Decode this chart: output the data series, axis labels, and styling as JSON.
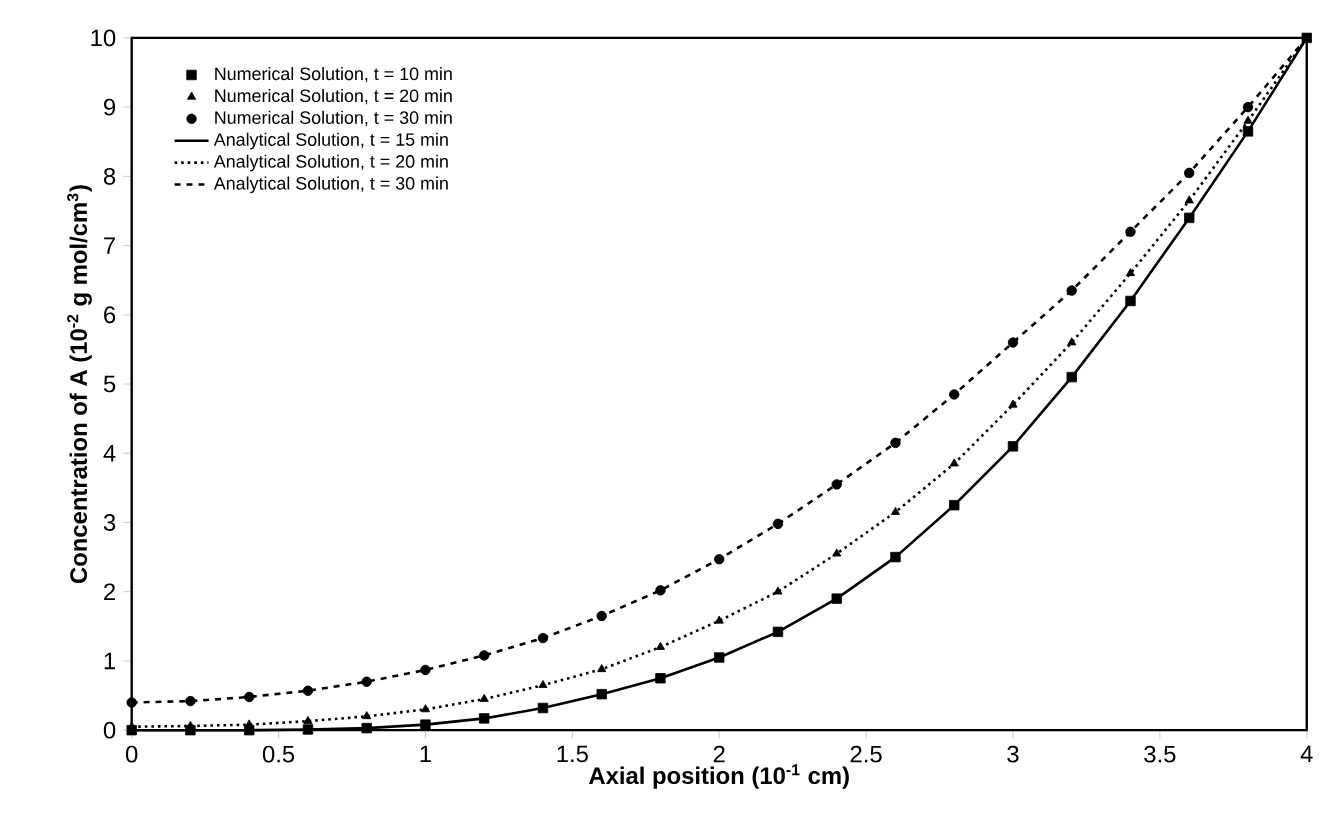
{
  "chart_data": {
    "type": "line",
    "xlabel": "**Axial position (10$^{-1}$ cm)**",
    "ylabel": "**Concentration of A (10$^{-2}$ g mol/cm$^{3}$)**",
    "x": [
      0,
      0.2,
      0.4,
      0.6,
      0.8,
      1.0,
      1.2,
      1.4,
      1.6,
      1.8,
      2.0,
      2.2,
      2.4,
      2.6,
      2.8,
      3.0,
      3.2,
      3.4,
      3.6,
      3.8,
      4.0
    ],
    "xlim": [
      0,
      4
    ],
    "ylim": [
      0,
      10
    ],
    "xticks": [
      0,
      0.5,
      1,
      1.5,
      2,
      2.5,
      3,
      3.5,
      4
    ],
    "yticks": [
      0,
      1,
      2,
      3,
      4,
      5,
      6,
      7,
      8,
      9,
      10
    ],
    "legend": "top left",
    "series": [
      {
        "name": "Numerical Solution, t = 10 min",
        "type": "scatter",
        "marker": "square",
        "color": "#000000",
        "values": [
          0,
          0,
          0,
          0.01,
          0.03,
          0.08,
          0.17,
          0.32,
          0.52,
          0.75,
          1.05,
          1.42,
          1.9,
          2.5,
          3.25,
          4.1,
          5.1,
          6.2,
          7.4,
          8.65,
          10
        ]
      },
      {
        "name": "Numerical Solution, t = 20 min",
        "type": "scatter",
        "marker": "triangle",
        "color": "#000000",
        "values": [
          0.05,
          0.06,
          0.08,
          0.13,
          0.2,
          0.3,
          0.45,
          0.65,
          0.88,
          1.2,
          1.58,
          2.0,
          2.55,
          3.15,
          3.85,
          4.7,
          5.6,
          6.6,
          7.65,
          8.8,
          null
        ]
      },
      {
        "name": "Numerical Solution, t = 30 min",
        "type": "scatter",
        "marker": "circle",
        "color": "#000000",
        "values": [
          0.4,
          0.42,
          0.48,
          0.57,
          0.7,
          0.87,
          1.08,
          1.33,
          1.65,
          2.02,
          2.47,
          2.98,
          3.55,
          4.15,
          4.85,
          5.6,
          6.35,
          7.2,
          8.05,
          9.0,
          null
        ]
      },
      {
        "name": "Analytical Solution, t = 15 min",
        "line_style": "solid",
        "color": "#000000",
        "values": [
          0,
          0,
          0,
          0.01,
          0.03,
          0.08,
          0.17,
          0.32,
          0.52,
          0.75,
          1.05,
          1.42,
          1.9,
          2.5,
          3.25,
          4.1,
          5.1,
          6.2,
          7.4,
          8.65,
          10
        ]
      },
      {
        "name": "Analytical Solution, t = 20 min",
        "line_style": "dotted",
        "color": "#000000",
        "values": [
          0.05,
          0.06,
          0.08,
          0.13,
          0.2,
          0.3,
          0.45,
          0.65,
          0.88,
          1.2,
          1.58,
          2.0,
          2.55,
          3.15,
          3.85,
          4.7,
          5.6,
          6.6,
          7.65,
          8.8,
          10
        ]
      },
      {
        "name": "Analytical Solution, t = 30 min",
        "line_style": "dashed",
        "color": "#000000",
        "values": [
          0.4,
          0.42,
          0.48,
          0.57,
          0.7,
          0.87,
          1.08,
          1.33,
          1.65,
          2.02,
          2.47,
          2.98,
          3.55,
          4.15,
          4.85,
          5.6,
          6.35,
          7.2,
          8.05,
          9.0,
          10
        ]
      }
    ]
  }
}
